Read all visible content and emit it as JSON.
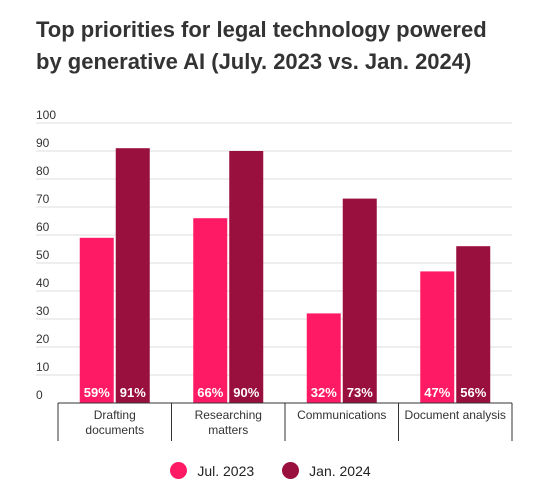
{
  "chart_data": {
    "type": "bar",
    "title": "Top priorities for legal technology powered by generative AI (July. 2023 vs. Jan. 2024)",
    "categories": [
      [
        "Drafting",
        "documents"
      ],
      [
        "Researching",
        "matters"
      ],
      [
        "Communications"
      ],
      [
        "Document analysis"
      ]
    ],
    "series": [
      {
        "name": "Jul. 2023",
        "values": [
          59,
          66,
          32,
          47
        ],
        "labels": [
          "59%",
          "66%",
          "32%",
          "47%"
        ],
        "color": "#ff1a66"
      },
      {
        "name": "Jan. 2024",
        "values": [
          91,
          90,
          73,
          56
        ],
        "labels": [
          "91%",
          "90%",
          "73%",
          "56%"
        ],
        "color": "#990f3d"
      }
    ],
    "ylim": [
      0,
      100
    ],
    "yticks": [
      0,
      10,
      20,
      30,
      40,
      50,
      60,
      70,
      80,
      90,
      100
    ],
    "grid": true,
    "legend": "bottom-center"
  }
}
